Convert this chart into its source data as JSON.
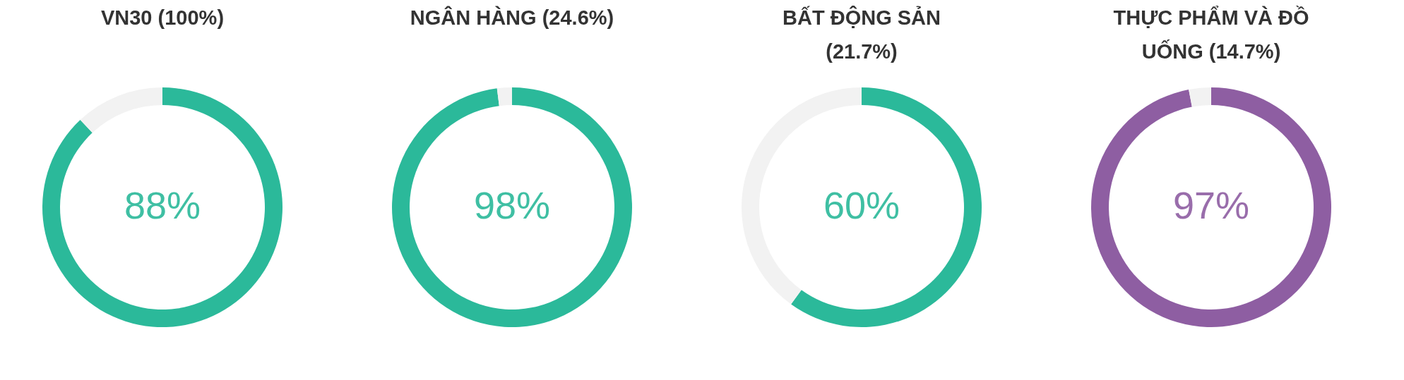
{
  "chart_data": [
    {
      "type": "donut",
      "title": "VN30 (100%)",
      "categories": [
        null,
        null
      ],
      "values": [
        88,
        12
      ],
      "colors": [
        "#2bb99a",
        "#f2f2f2"
      ],
      "annotations": [
        "88%"
      ]
    },
    {
      "type": "donut",
      "title": "NGÂN HÀNG (24.6%)",
      "categories": [
        null,
        null
      ],
      "values": [
        98,
        2
      ],
      "colors": [
        "#2bb99a",
        "#f2f2f2"
      ],
      "annotations": [
        "98%"
      ]
    },
    {
      "type": "donut",
      "title": "BẤT ĐỘNG SẢN (21.7%)",
      "categories": [
        null,
        null
      ],
      "values": [
        60,
        40
      ],
      "colors": [
        "#2bb99a",
        "#f2f2f2"
      ],
      "annotations": [
        "60%"
      ]
    },
    {
      "type": "donut",
      "title": "THỰC PHẨM VÀ ĐỒ UỐNG (14.7%)",
      "categories": [
        null,
        null
      ],
      "values": [
        97,
        3
      ],
      "colors": [
        "#8e5ea2",
        "#f2f2f2"
      ],
      "annotations": [
        "97%"
      ]
    }
  ]
}
